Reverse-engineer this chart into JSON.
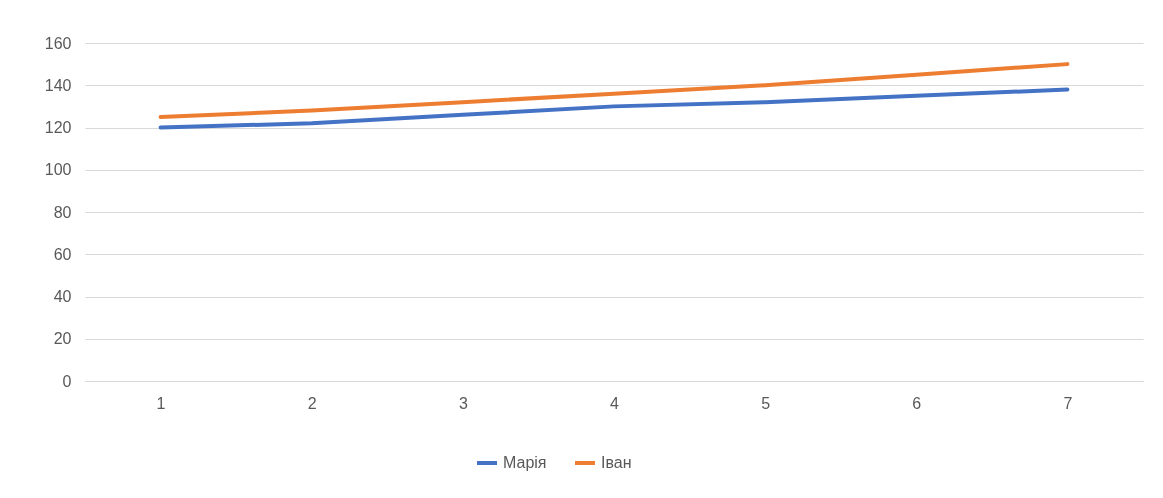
{
  "chart_data": {
    "type": "line",
    "categories": [
      "1",
      "2",
      "3",
      "4",
      "5",
      "6",
      "7"
    ],
    "series": [
      {
        "name": "Марія",
        "color": "#4472c4",
        "values": [
          120,
          122,
          126,
          130,
          132,
          135,
          138
        ]
      },
      {
        "name": "Іван",
        "color": "#ed7d31",
        "values": [
          125,
          128,
          132,
          136,
          140,
          145,
          150
        ]
      }
    ],
    "ylim": [
      0,
      160
    ],
    "yticks": [
      0,
      20,
      40,
      60,
      80,
      100,
      120,
      140,
      160
    ],
    "grid": "y",
    "legend": "bottom",
    "marker": "none",
    "line_style": "solid"
  }
}
